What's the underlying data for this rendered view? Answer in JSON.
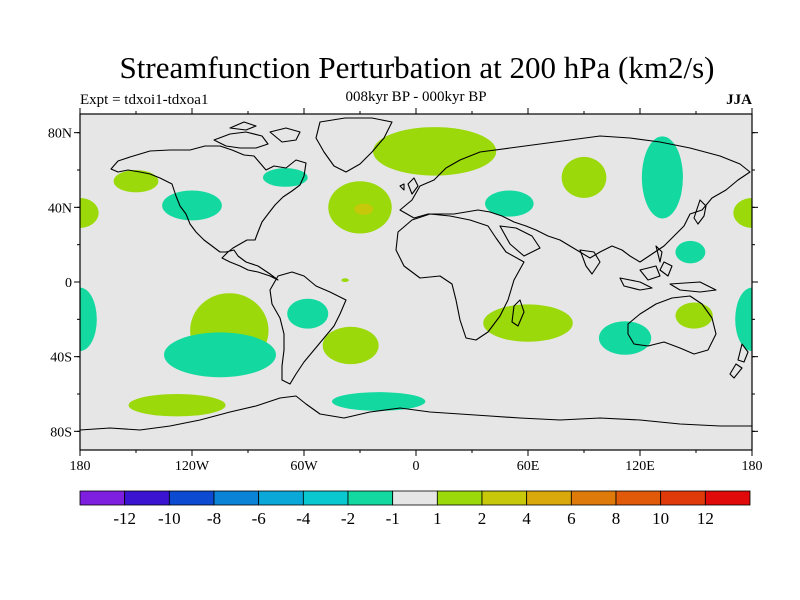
{
  "title": "Streamfunction Perturbation at 200 hPa (km2/s)",
  "subtitle": "008kyr BP - 000kyr BP",
  "experiment": "Expt = tdxoi1-tdxoa1",
  "season": "JJA",
  "map": {
    "projection": "cylindrical equidistant",
    "lon_range": [
      -180,
      180
    ],
    "lat_range": [
      -90,
      90
    ],
    "background_color": "#e6e6e6",
    "lat_ticks": [
      80,
      40,
      0,
      -40,
      -80
    ],
    "lat_tick_labels": [
      "80N",
      "40N",
      "0",
      "40S",
      "80S"
    ],
    "lon_ticks": [
      -180,
      -120,
      -60,
      0,
      60,
      120,
      180
    ],
    "lon_tick_labels": [
      "180",
      "120W",
      "60W",
      "0",
      "60E",
      "120E",
      "180"
    ]
  },
  "chart_data": {
    "type": "heatmap",
    "title": "Streamfunction Perturbation at 200 hPa (km2/s)",
    "subtitle": "008kyr BP - 000kyr BP",
    "variable": "streamfunction perturbation",
    "units": "km2/s",
    "level": "200 hPa",
    "season": "JJA",
    "anomaly_regions": [
      {
        "lon": -150,
        "lat": 54,
        "r_lon": 12,
        "r_lat": 6,
        "rot": 0,
        "class": "1 to 2"
      },
      {
        "lon": -120,
        "lat": 41,
        "r_lon": 16,
        "r_lat": 8,
        "rot": 0,
        "class": "-2 to -1"
      },
      {
        "lon": -180,
        "lat": 37,
        "r_lon": 10,
        "r_lat": 8,
        "rot": 0,
        "class": "1 to 2"
      },
      {
        "lon": 180,
        "lat": 37,
        "r_lon": 10,
        "r_lat": 8,
        "rot": 0,
        "class": "1 to 2"
      },
      {
        "lon": -70,
        "lat": 56,
        "r_lon": 12,
        "r_lat": 5,
        "rot": 0,
        "class": "-2 to -1"
      },
      {
        "lon": -30,
        "lat": 40,
        "r_lon": 17,
        "r_lat": 14,
        "rot": 0,
        "class": "1 to 2"
      },
      {
        "lon": -28,
        "lat": 39,
        "r_lon": 5,
        "r_lat": 3,
        "rot": 0,
        "class": "2 to 4"
      },
      {
        "lon": 10,
        "lat": 70,
        "r_lon": 33,
        "r_lat": 13,
        "rot": 0,
        "class": "1 to 2"
      },
      {
        "lon": 50,
        "lat": 42,
        "r_lon": 13,
        "r_lat": 7,
        "rot": 0,
        "class": "-2 to -1"
      },
      {
        "lon": 90,
        "lat": 56,
        "r_lon": 12,
        "r_lat": 11,
        "rot": 0,
        "class": "1 to 2"
      },
      {
        "lon": 132,
        "lat": 56,
        "r_lon": 11,
        "r_lat": 22,
        "rot": 0,
        "class": "-2 to -1"
      },
      {
        "lon": 147,
        "lat": 16,
        "r_lon": 8,
        "r_lat": 6,
        "rot": 0,
        "class": "-2 to -1"
      },
      {
        "lon": -180,
        "lat": -20,
        "r_lon": 9,
        "r_lat": 17,
        "rot": 0,
        "class": "-2 to -1"
      },
      {
        "lon": 180,
        "lat": -20,
        "r_lon": 9,
        "r_lat": 17,
        "rot": 0,
        "class": "-2 to -1"
      },
      {
        "lon": -100,
        "lat": -26,
        "r_lon": 21,
        "r_lat": 20,
        "rot": 0,
        "class": "1 to 2"
      },
      {
        "lon": -105,
        "lat": -39,
        "r_lon": 30,
        "r_lat": 12,
        "rot": 0,
        "class": "-2 to -1"
      },
      {
        "lon": -58,
        "lat": -17,
        "r_lon": 11,
        "r_lat": 8,
        "rot": 0,
        "class": "-2 to -1"
      },
      {
        "lon": -35,
        "lat": -34,
        "r_lon": 15,
        "r_lat": 10,
        "rot": 0,
        "class": "1 to 2"
      },
      {
        "lon": -38,
        "lat": 1,
        "r_lon": 2,
        "r_lat": 1,
        "rot": 0,
        "class": "1 to 2"
      },
      {
        "lon": 60,
        "lat": -22,
        "r_lon": 24,
        "r_lat": 10,
        "rot": 0,
        "class": "1 to 2"
      },
      {
        "lon": 112,
        "lat": -30,
        "r_lon": 14,
        "r_lat": 9,
        "rot": 0,
        "class": "-2 to -1"
      },
      {
        "lon": 149,
        "lat": -18,
        "r_lon": 10,
        "r_lat": 7,
        "rot": 0,
        "class": "1 to 2"
      },
      {
        "lon": -128,
        "lat": -66,
        "r_lon": 26,
        "r_lat": 6,
        "rot": 0,
        "class": "1 to 2"
      },
      {
        "lon": -20,
        "lat": -64,
        "r_lon": 25,
        "r_lat": 5,
        "rot": 0,
        "class": "-2 to -1"
      }
    ]
  },
  "colorbar": {
    "colors": [
      "#7e1fe0",
      "#3b14d2",
      "#0b4ad1",
      "#0a82d6",
      "#0aa8d8",
      "#0ac8d0",
      "#13d9a0",
      "#e6e6e6",
      "#9bd90a",
      "#c8c80a",
      "#d9a80a",
      "#de7a0a",
      "#e05a0a",
      "#e03a0a",
      "#e00a0a"
    ],
    "labels": [
      "-12",
      "-10",
      "-8",
      "-6",
      "-4",
      "-2",
      "-1",
      "1",
      "2",
      "4",
      "6",
      "8",
      "10",
      "12"
    ]
  }
}
